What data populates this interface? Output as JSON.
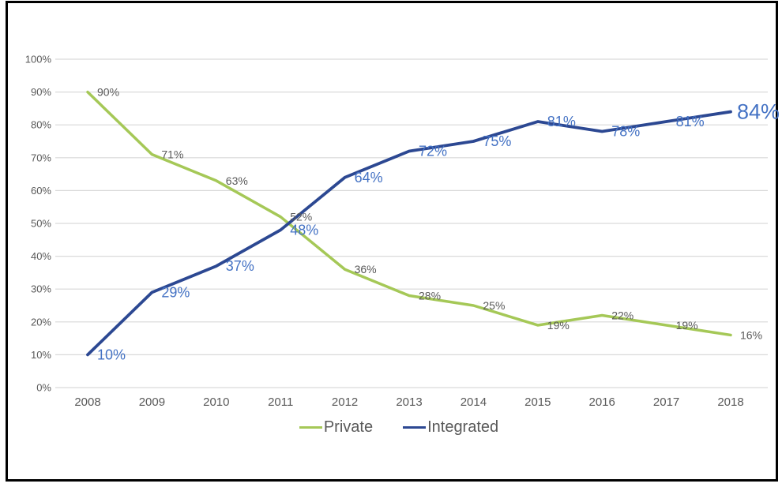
{
  "frame": {
    "background": "#ffffff",
    "border_color": "#000000"
  },
  "axis": {
    "grid_color": "#d9d9d9",
    "tick_color": "#595959",
    "grid": true
  },
  "chart_data": {
    "type": "line",
    "x": [
      "2008",
      "2009",
      "2010",
      "2011",
      "2012",
      "2013",
      "2014",
      "2015",
      "2016",
      "2017",
      "2018"
    ],
    "series": [
      {
        "name": "Private",
        "values": [
          90,
          71,
          63,
          52,
          36,
          28,
          25,
          19,
          22,
          19,
          16
        ],
        "color": "#a5c857",
        "label_color": "#595959"
      },
      {
        "name": "Integrated",
        "values": [
          10,
          29,
          37,
          48,
          64,
          72,
          75,
          81,
          78,
          81,
          84
        ],
        "color": "#2c4892",
        "label_color": "#4472c4"
      }
    ],
    "y_ticks": [
      "0%",
      "10%",
      "20%",
      "30%",
      "40%",
      "50%",
      "60%",
      "70%",
      "80%",
      "90%",
      "100%"
    ],
    "ylim": [
      0,
      100
    ],
    "grid": true,
    "legend_position": "bottom",
    "data_labels": true,
    "data_label_suffix": "%"
  }
}
